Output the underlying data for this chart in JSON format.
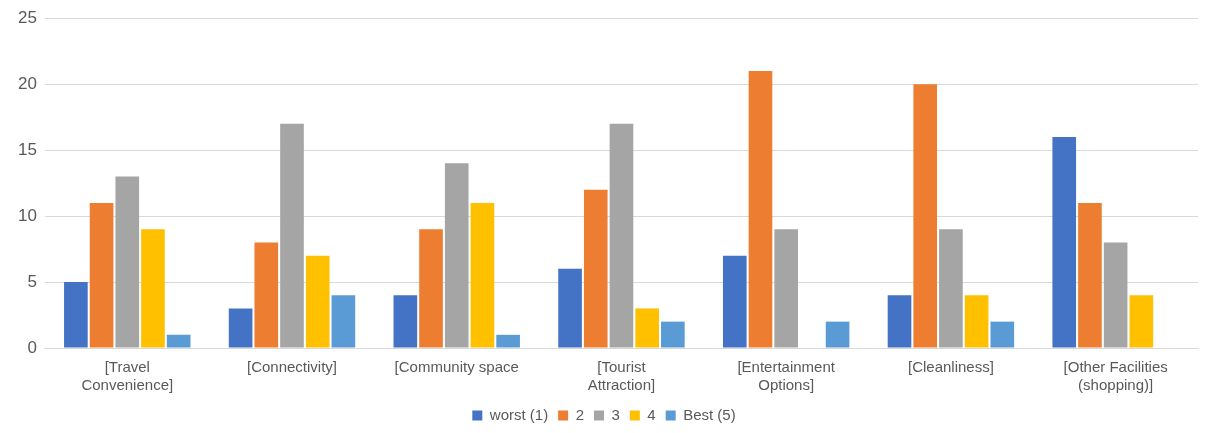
{
  "chart_data": {
    "type": "bar",
    "categories": [
      "[Travel Convenience]",
      "[Connectivity]",
      "[Community space",
      "[Tourist Attraction]",
      "[Entertainment Options]",
      "[Cleanliness]",
      "[Other Facilities (shopping)]"
    ],
    "series": [
      {
        "name": "worst (1)",
        "color": "#4472c4",
        "values": [
          5,
          3,
          4,
          6,
          7,
          4,
          16
        ]
      },
      {
        "name": "2",
        "color": "#ed7d31",
        "values": [
          11,
          8,
          9,
          12,
          21,
          20,
          11
        ]
      },
      {
        "name": "3",
        "color": "#a5a5a5",
        "values": [
          13,
          17,
          14,
          17,
          9,
          9,
          8
        ]
      },
      {
        "name": "4",
        "color": "#ffc000",
        "values": [
          9,
          7,
          11,
          3,
          0,
          4,
          4
        ]
      },
      {
        "name": "Best (5)",
        "color": "#5b9bd5",
        "values": [
          1,
          4,
          1,
          2,
          2,
          2,
          0
        ]
      }
    ],
    "ylim": [
      0,
      25
    ],
    "yticks": [
      0,
      5,
      10,
      15,
      20,
      25
    ],
    "grid": "y",
    "legend": "bottom"
  }
}
